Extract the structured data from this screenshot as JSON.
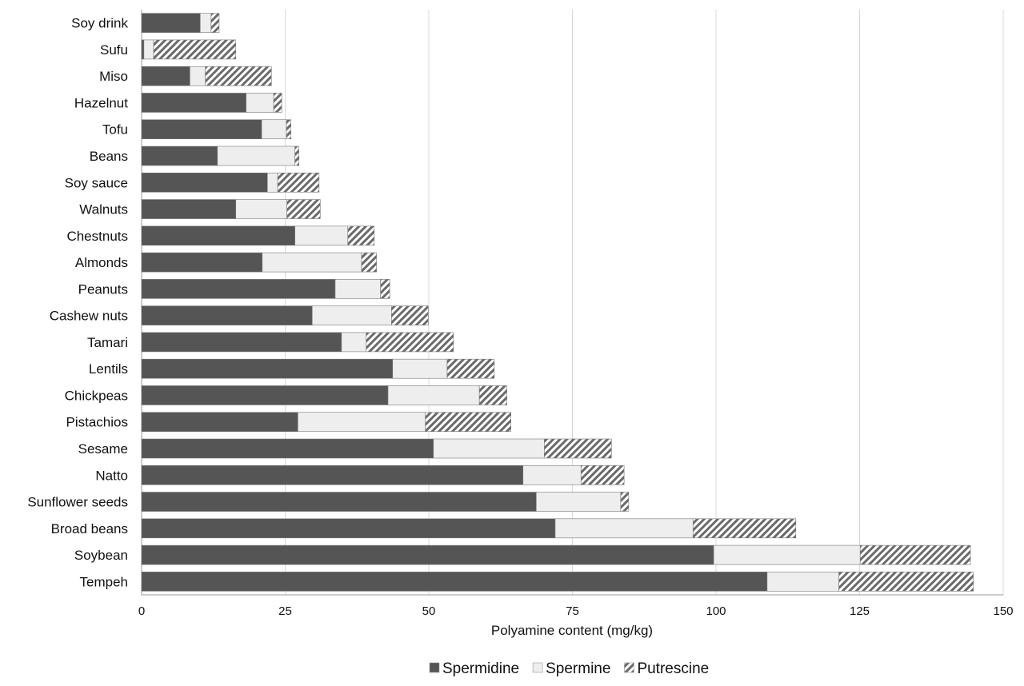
{
  "chart_data": {
    "type": "bar",
    "orientation": "horizontal",
    "stacked": true,
    "title": "",
    "xlabel": "Polyamine content (mg/kg)",
    "ylabel": "",
    "xlim": [
      0,
      150
    ],
    "xticks": [
      0,
      25,
      50,
      75,
      100,
      125,
      150
    ],
    "grid": "vertical",
    "legend_position": "bottom",
    "categories": [
      "Soy drink",
      "Sufu",
      "Miso",
      "Hazelnut",
      "Tofu",
      "Beans",
      "Soy sauce",
      "Walnuts",
      "Chestnuts",
      "Almonds",
      "Peanuts",
      "Cashew nuts",
      "Tamari",
      "Lentils",
      "Chickpeas",
      "Pistachios",
      "Sesame",
      "Natto",
      "Sunflower seeds",
      "Broad beans",
      "Soybean",
      "Tempeh"
    ],
    "series": [
      {
        "name": "Spermidine",
        "color": "#555555",
        "pattern": "solid",
        "values": [
          10.2,
          0.4,
          8.4,
          18.2,
          20.9,
          13.2,
          21.9,
          16.4,
          26.7,
          21.0,
          33.7,
          29.7,
          34.8,
          43.7,
          42.9,
          27.2,
          50.8,
          66.4,
          68.7,
          72.0,
          99.6,
          108.9
        ]
      },
      {
        "name": "Spermine",
        "color": "#eeeeee",
        "pattern": "solid",
        "values": [
          1.9,
          1.7,
          2.7,
          4.8,
          4.3,
          13.5,
          1.8,
          8.9,
          9.2,
          17.3,
          7.9,
          13.8,
          4.3,
          9.5,
          15.9,
          22.2,
          19.3,
          10.1,
          14.7,
          24.0,
          25.5,
          12.5
        ]
      },
      {
        "name": "Putrescine",
        "color": "#777777",
        "pattern": "diagonal-hatch",
        "values": [
          1.4,
          14.3,
          11.5,
          1.4,
          0.8,
          0.7,
          7.2,
          5.8,
          4.6,
          2.6,
          1.6,
          6.4,
          15.2,
          8.2,
          4.8,
          14.9,
          11.7,
          7.5,
          1.4,
          17.9,
          19.2,
          23.4
        ]
      }
    ]
  }
}
